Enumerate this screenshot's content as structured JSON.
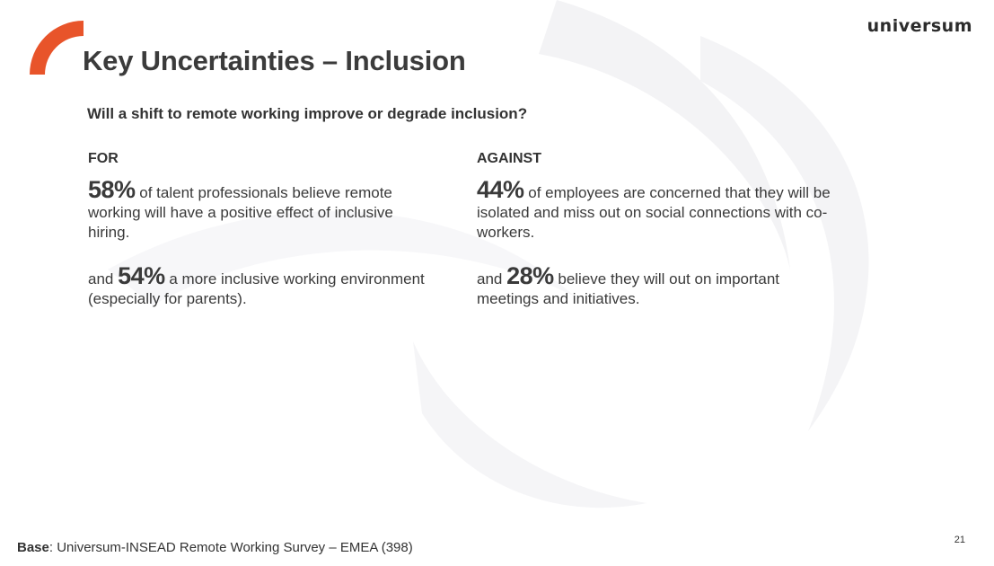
{
  "logo": "universum",
  "title": "Key Uncertainties – Inclusion",
  "question": "Will a shift to remote working improve or degrade inclusion?",
  "for": {
    "heading": "FOR",
    "points": [
      {
        "prefix": "",
        "stat": "58%",
        "text": " of talent professionals believe remote working will have a positive effect of inclusive hiring."
      },
      {
        "prefix": "and ",
        "stat": "54%",
        "text": " a more inclusive working environment (especially for parents)."
      }
    ]
  },
  "against": {
    "heading": "AGAINST",
    "points": [
      {
        "prefix": "",
        "stat": "44%",
        "text": " of employees are concerned that they will be isolated and miss out on social connections with co-workers."
      },
      {
        "prefix": "and ",
        "stat": "28%",
        "text": " believe they will out on important meetings and initiatives."
      }
    ]
  },
  "base": {
    "label": "Base",
    "text": ": Universum-INSEAD Remote Working Survey – EMEA (398)"
  },
  "page_number": "21",
  "colors": {
    "accent": "#e8542a",
    "text": "#3a3a3a",
    "background_shape": "#f1f1f3"
  }
}
